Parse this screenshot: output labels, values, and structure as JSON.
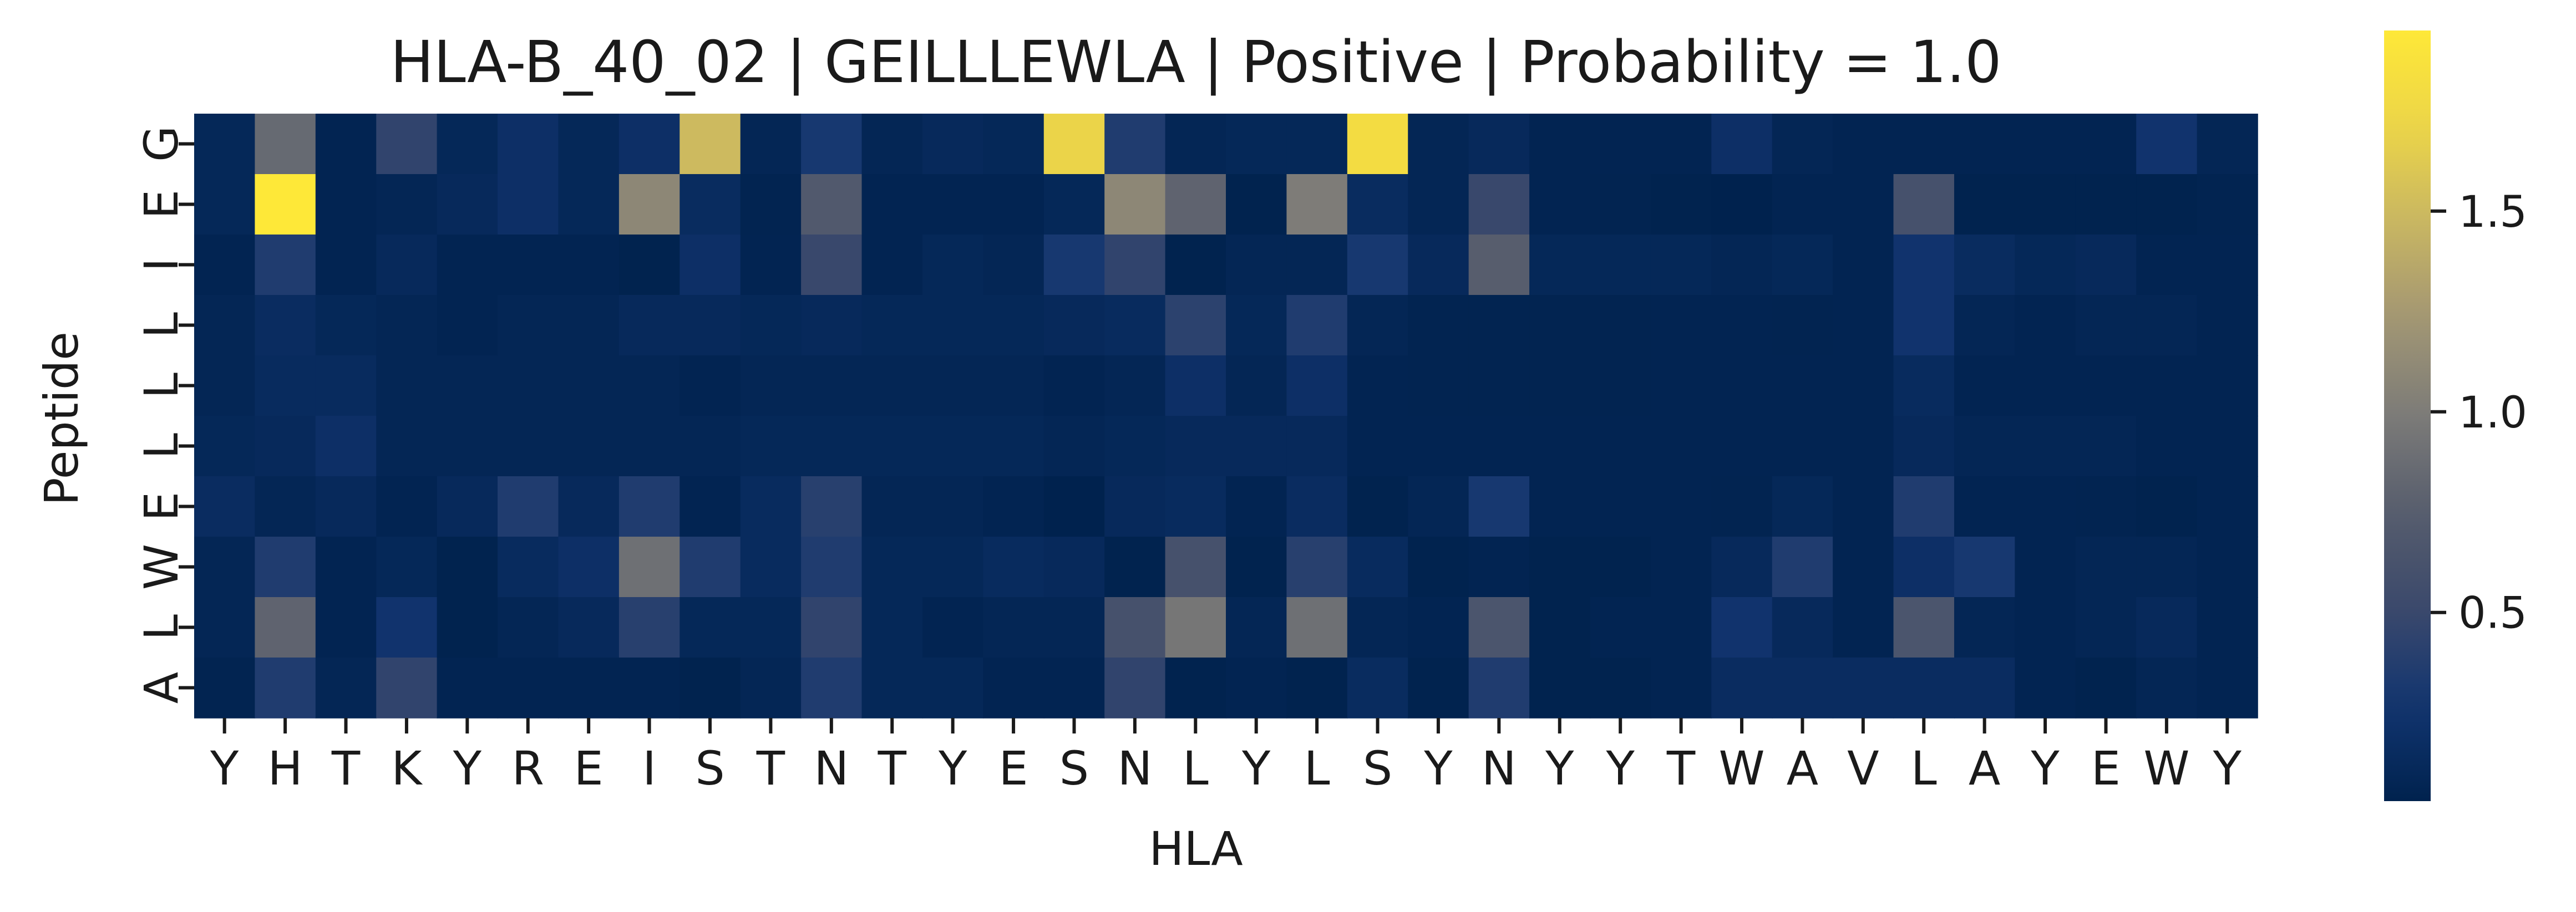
{
  "chart_data": {
    "type": "heatmap",
    "title": "HLA-B_40_02 | GEILLLEWLA | Positive | Probability = 1.0",
    "xlabel": "HLA",
    "ylabel": "Peptide",
    "x_categories": [
      "Y",
      "H",
      "T",
      "K",
      "Y",
      "R",
      "E",
      "I",
      "S",
      "T",
      "N",
      "T",
      "Y",
      "E",
      "S",
      "N",
      "L",
      "Y",
      "L",
      "S",
      "Y",
      "N",
      "Y",
      "Y",
      "T",
      "W",
      "A",
      "V",
      "L",
      "A",
      "Y",
      "E",
      "W",
      "Y"
    ],
    "y_categories": [
      "G",
      "E",
      "I",
      "L",
      "L",
      "L",
      "E",
      "W",
      "L",
      "A"
    ],
    "values": [
      [
        0.1,
        0.85,
        0.06,
        0.45,
        0.1,
        0.2,
        0.1,
        0.2,
        1.5,
        0.08,
        0.3,
        0.08,
        0.12,
        0.1,
        1.7,
        0.35,
        0.08,
        0.1,
        0.1,
        1.8,
        0.08,
        0.12,
        0.06,
        0.06,
        0.06,
        0.2,
        0.08,
        0.06,
        0.06,
        0.06,
        0.06,
        0.06,
        0.25,
        0.08
      ],
      [
        0.1,
        1.95,
        0.06,
        0.08,
        0.12,
        0.2,
        0.1,
        1.1,
        0.15,
        0.05,
        0.7,
        0.06,
        0.06,
        0.06,
        0.1,
        1.1,
        0.8,
        0.04,
        1.0,
        0.15,
        0.08,
        0.5,
        0.06,
        0.05,
        0.04,
        0.03,
        0.06,
        0.06,
        0.6,
        0.04,
        0.04,
        0.04,
        0.04,
        0.05
      ],
      [
        0.06,
        0.35,
        0.06,
        0.12,
        0.06,
        0.06,
        0.06,
        0.04,
        0.2,
        0.06,
        0.5,
        0.06,
        0.1,
        0.08,
        0.3,
        0.45,
        0.04,
        0.08,
        0.08,
        0.3,
        0.12,
        0.75,
        0.1,
        0.1,
        0.1,
        0.08,
        0.1,
        0.06,
        0.25,
        0.15,
        0.1,
        0.12,
        0.06,
        0.06
      ],
      [
        0.08,
        0.16,
        0.1,
        0.08,
        0.06,
        0.08,
        0.08,
        0.12,
        0.12,
        0.1,
        0.12,
        0.1,
        0.1,
        0.1,
        0.12,
        0.14,
        0.42,
        0.1,
        0.35,
        0.08,
        0.05,
        0.05,
        0.05,
        0.05,
        0.06,
        0.06,
        0.05,
        0.06,
        0.25,
        0.08,
        0.06,
        0.08,
        0.08,
        0.06
      ],
      [
        0.08,
        0.14,
        0.14,
        0.08,
        0.08,
        0.08,
        0.08,
        0.08,
        0.06,
        0.08,
        0.08,
        0.08,
        0.08,
        0.08,
        0.06,
        0.08,
        0.2,
        0.08,
        0.2,
        0.06,
        0.05,
        0.05,
        0.05,
        0.05,
        0.06,
        0.06,
        0.06,
        0.06,
        0.14,
        0.06,
        0.06,
        0.06,
        0.06,
        0.06
      ],
      [
        0.1,
        0.12,
        0.2,
        0.08,
        0.08,
        0.08,
        0.08,
        0.08,
        0.08,
        0.1,
        0.1,
        0.1,
        0.1,
        0.1,
        0.08,
        0.1,
        0.12,
        0.12,
        0.12,
        0.06,
        0.06,
        0.06,
        0.06,
        0.06,
        0.06,
        0.06,
        0.06,
        0.06,
        0.12,
        0.08,
        0.08,
        0.08,
        0.06,
        0.06
      ],
      [
        0.16,
        0.08,
        0.12,
        0.06,
        0.12,
        0.35,
        0.12,
        0.35,
        0.06,
        0.14,
        0.4,
        0.08,
        0.08,
        0.06,
        0.03,
        0.12,
        0.14,
        0.06,
        0.16,
        0.04,
        0.08,
        0.3,
        0.06,
        0.06,
        0.06,
        0.05,
        0.1,
        0.06,
        0.35,
        0.06,
        0.06,
        0.05,
        0.04,
        0.06
      ],
      [
        0.08,
        0.35,
        0.06,
        0.1,
        0.04,
        0.14,
        0.2,
        0.9,
        0.35,
        0.14,
        0.35,
        0.1,
        0.1,
        0.14,
        0.12,
        0.04,
        0.6,
        0.04,
        0.4,
        0.14,
        0.04,
        0.06,
        0.04,
        0.04,
        0.06,
        0.12,
        0.35,
        0.06,
        0.2,
        0.3,
        0.06,
        0.08,
        0.08,
        0.06
      ],
      [
        0.08,
        0.8,
        0.06,
        0.25,
        0.04,
        0.08,
        0.12,
        0.4,
        0.1,
        0.1,
        0.45,
        0.1,
        0.06,
        0.08,
        0.08,
        0.6,
        0.95,
        0.08,
        0.9,
        0.08,
        0.06,
        0.65,
        0.04,
        0.06,
        0.06,
        0.25,
        0.12,
        0.06,
        0.65,
        0.08,
        0.06,
        0.08,
        0.12,
        0.06
      ],
      [
        0.05,
        0.35,
        0.08,
        0.45,
        0.06,
        0.06,
        0.06,
        0.06,
        0.04,
        0.08,
        0.35,
        0.1,
        0.1,
        0.06,
        0.06,
        0.45,
        0.04,
        0.06,
        0.04,
        0.15,
        0.04,
        0.35,
        0.04,
        0.04,
        0.06,
        0.16,
        0.16,
        0.16,
        0.16,
        0.16,
        0.06,
        0.04,
        0.08,
        0.06
      ]
    ],
    "colormap": "cividis",
    "vmin": 0.03,
    "vmax": 1.95,
    "colorbar_ticks": [
      0.5,
      1.0,
      1.5
    ],
    "colorbar_tick_labels": [
      "0.5",
      "1.0",
      "1.5"
    ],
    "grid": false,
    "colors": {
      "low": "#00224e",
      "mid": "#7c7b78",
      "high": "#fee838"
    }
  }
}
